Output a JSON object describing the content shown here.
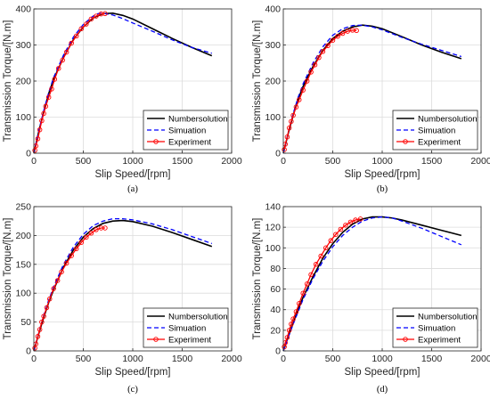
{
  "chart_data": [
    {
      "panel_label": "(a)",
      "type": "line",
      "xlabel": "Slip Speed/[rpm]",
      "ylabel": "Transmission Torque/[N.m]",
      "xlim": [
        0,
        2000
      ],
      "ylim": [
        0,
        400
      ],
      "xticks": [
        0,
        500,
        1000,
        1500,
        2000
      ],
      "yticks": [
        0,
        100,
        200,
        300,
        400
      ],
      "grid": true,
      "legend_position": "bottom-right",
      "series": [
        {
          "name": "Numbersolution",
          "style": "solid",
          "color": "#000000",
          "x": [
            0,
            50,
            100,
            150,
            200,
            300,
            400,
            500,
            600,
            700,
            800,
            900,
            1000,
            1200,
            1400,
            1600,
            1800
          ],
          "y": [
            0,
            60,
            115,
            165,
            205,
            265,
            315,
            350,
            375,
            387,
            388,
            382,
            372,
            345,
            318,
            293,
            270
          ]
        },
        {
          "name": "Simuation",
          "style": "dashed",
          "color": "#0000ff",
          "x": [
            0,
            50,
            100,
            150,
            200,
            300,
            400,
            500,
            600,
            650,
            700,
            800,
            900,
            1000,
            1200,
            1400,
            1600,
            1800
          ],
          "y": [
            0,
            62,
            118,
            168,
            210,
            272,
            322,
            357,
            380,
            387,
            388,
            383,
            373,
            361,
            338,
            314,
            293,
            277
          ]
        },
        {
          "name": "Experiment",
          "style": "solid-marker",
          "color": "#ff0000",
          "x": [
            10,
            20,
            40,
            60,
            80,
            100,
            120,
            150,
            180,
            210,
            250,
            290,
            330,
            380,
            430,
            480,
            530,
            580,
            630,
            680,
            720
          ],
          "y": [
            8,
            20,
            40,
            65,
            90,
            110,
            130,
            155,
            178,
            205,
            235,
            258,
            280,
            305,
            325,
            345,
            358,
            372,
            380,
            386,
            387
          ]
        }
      ]
    },
    {
      "panel_label": "(b)",
      "type": "line",
      "xlabel": "Slip Speed/[rpm]",
      "ylabel": "Transmission Torque/[N.m]",
      "xlim": [
        0,
        2000
      ],
      "ylim": [
        0,
        400
      ],
      "xticks": [
        0,
        500,
        1000,
        1500,
        2000
      ],
      "yticks": [
        0,
        100,
        200,
        300,
        400
      ],
      "grid": true,
      "legend_position": "bottom-right",
      "series": [
        {
          "name": "Numbersolution",
          "style": "solid",
          "color": "#000000",
          "x": [
            0,
            50,
            100,
            150,
            200,
            300,
            400,
            500,
            600,
            700,
            800,
            900,
            1000,
            1200,
            1400,
            1600,
            1800
          ],
          "y": [
            0,
            55,
            105,
            150,
            185,
            240,
            285,
            318,
            338,
            350,
            355,
            352,
            345,
            323,
            300,
            280,
            262
          ]
        },
        {
          "name": "Simuation",
          "style": "dashed",
          "color": "#0000ff",
          "x": [
            0,
            50,
            100,
            150,
            200,
            300,
            400,
            500,
            600,
            700,
            800,
            900,
            1000,
            1200,
            1400,
            1600,
            1800
          ],
          "y": [
            0,
            58,
            110,
            155,
            192,
            250,
            295,
            327,
            345,
            354,
            355,
            350,
            342,
            321,
            302,
            285,
            268
          ]
        },
        {
          "name": "Experiment",
          "style": "solid-marker",
          "color": "#ff0000",
          "x": [
            10,
            20,
            40,
            60,
            80,
            100,
            130,
            160,
            200,
            240,
            280,
            320,
            360,
            400,
            450,
            500,
            550,
            600,
            650,
            700,
            740
          ],
          "y": [
            10,
            25,
            45,
            70,
            88,
            105,
            128,
            148,
            175,
            200,
            225,
            245,
            265,
            282,
            298,
            313,
            324,
            332,
            338,
            341,
            340
          ]
        }
      ]
    },
    {
      "panel_label": "(c)",
      "type": "line",
      "xlabel": "Slip Speed/[rpm]",
      "ylabel": "Transmission Torque/[N.m]",
      "xlim": [
        0,
        2000
      ],
      "ylim": [
        0,
        250
      ],
      "xticks": [
        0,
        500,
        1000,
        1500,
        2000
      ],
      "yticks": [
        0,
        50,
        100,
        150,
        200,
        250
      ],
      "grid": true,
      "legend_position": "bottom-right",
      "series": [
        {
          "name": "Numbersolution",
          "style": "solid",
          "color": "#000000",
          "x": [
            0,
            50,
            100,
            150,
            200,
            300,
            400,
            500,
            600,
            700,
            800,
            900,
            1000,
            1200,
            1400,
            1600,
            1800
          ],
          "y": [
            0,
            30,
            58,
            84,
            106,
            145,
            175,
            197,
            212,
            221,
            225,
            226,
            224,
            216,
            205,
            193,
            181
          ]
        },
        {
          "name": "Simuation",
          "style": "dashed",
          "color": "#0000ff",
          "x": [
            0,
            50,
            100,
            150,
            200,
            300,
            400,
            500,
            600,
            700,
            800,
            900,
            1000,
            1200,
            1400,
            1600,
            1800
          ],
          "y": [
            0,
            32,
            62,
            88,
            111,
            150,
            180,
            202,
            217,
            225,
            229,
            229,
            227,
            220,
            210,
            198,
            186
          ]
        },
        {
          "name": "Experiment",
          "style": "solid-marker",
          "color": "#ff0000",
          "x": [
            10,
            20,
            40,
            60,
            80,
            100,
            130,
            160,
            200,
            240,
            280,
            330,
            380,
            430,
            480,
            530,
            580,
            630,
            680,
            720
          ],
          "y": [
            5,
            12,
            25,
            37,
            50,
            60,
            75,
            90,
            108,
            122,
            137,
            152,
            165,
            177,
            188,
            197,
            204,
            210,
            213,
            213
          ]
        }
      ]
    },
    {
      "panel_label": "(d)",
      "type": "line",
      "xlabel": "Slip Speed/[rpm]",
      "ylabel": "Transmission Torque/[N.m]",
      "xlim": [
        0,
        2000
      ],
      "ylim": [
        0,
        140
      ],
      "xticks": [
        0,
        500,
        1000,
        1500,
        2000
      ],
      "yticks": [
        0,
        20,
        40,
        60,
        80,
        100,
        120,
        140
      ],
      "grid": true,
      "legend_position": "bottom-right",
      "series": [
        {
          "name": "Numbersolution",
          "style": "solid",
          "color": "#000000",
          "x": [
            0,
            50,
            100,
            150,
            200,
            300,
            400,
            500,
            600,
            700,
            800,
            900,
            1000,
            1100,
            1200,
            1400,
            1600,
            1800
          ],
          "y": [
            0,
            14,
            27,
            40,
            52,
            72,
            90,
            104,
            115,
            123,
            128,
            130,
            130,
            129,
            127,
            122,
            117,
            112
          ]
        },
        {
          "name": "Simuation",
          "style": "dashed",
          "color": "#0000ff",
          "x": [
            0,
            50,
            100,
            150,
            200,
            300,
            400,
            500,
            600,
            700,
            800,
            900,
            1000,
            1100,
            1200,
            1400,
            1600,
            1800
          ],
          "y": [
            0,
            13,
            26,
            38,
            50,
            70,
            87,
            101,
            112,
            120,
            126,
            129,
            130,
            129,
            126,
            119,
            111,
            103
          ]
        },
        {
          "name": "Experiment",
          "style": "solid-marker",
          "color": "#ff0000",
          "x": [
            10,
            20,
            40,
            60,
            80,
            100,
            130,
            160,
            200,
            240,
            280,
            330,
            380,
            430,
            480,
            530,
            580,
            630,
            680,
            730,
            780
          ],
          "y": [
            4,
            8,
            13,
            20,
            26,
            31,
            38,
            46,
            56,
            65,
            74,
            84,
            92,
            100,
            107,
            113,
            118,
            122,
            125,
            127,
            128
          ]
        }
      ]
    }
  ]
}
